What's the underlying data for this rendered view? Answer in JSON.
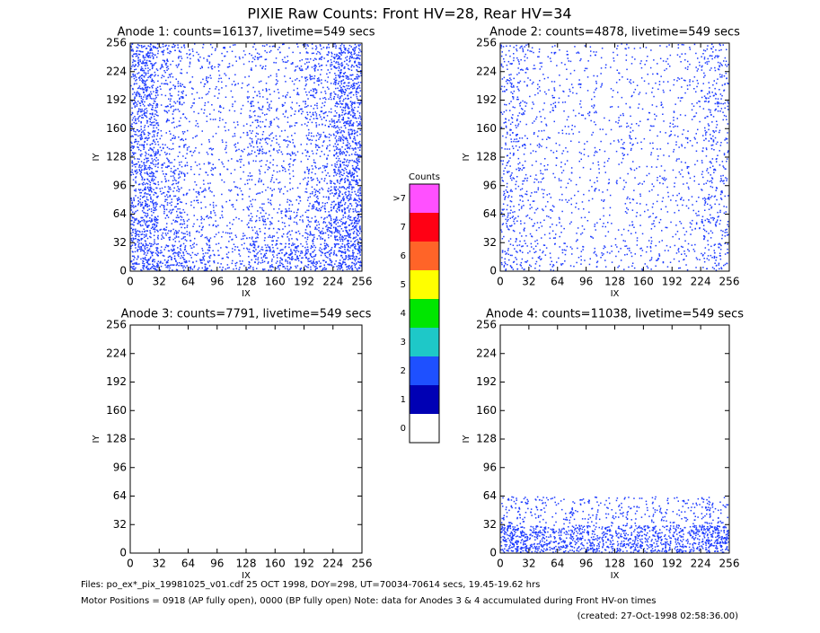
{
  "title": "PIXIE Raw Counts:  Front HV=28, Rear HV=34",
  "chart_data": [
    {
      "type": "heatmap",
      "title": "Anode 1: counts=16137, livetime=549 secs",
      "x_label": "IX",
      "y_label": "IY",
      "xlim": [
        0,
        256
      ],
      "ylim": [
        0,
        256
      ],
      "xticks": [
        0,
        32,
        64,
        96,
        128,
        160,
        192,
        224,
        256
      ],
      "yticks": [
        0,
        32,
        64,
        96,
        128,
        160,
        192,
        224,
        256
      ],
      "x_bins": [
        0,
        32,
        64,
        96,
        128,
        160,
        192,
        224,
        256
      ],
      "y_bins": [
        0,
        32,
        64,
        96,
        128,
        160,
        192,
        224,
        256
      ],
      "color": "#1e3cff",
      "values": [
        [
          170,
          120,
          80,
          50,
          100,
          120,
          130,
          180
        ],
        [
          150,
          80,
          50,
          30,
          70,
          50,
          100,
          170
        ],
        [
          130,
          80,
          40,
          25,
          40,
          40,
          80,
          160
        ],
        [
          130,
          70,
          30,
          25,
          40,
          30,
          60,
          150
        ],
        [
          130,
          50,
          25,
          25,
          70,
          40,
          60,
          150
        ],
        [
          130,
          50,
          25,
          25,
          60,
          40,
          70,
          150
        ],
        [
          140,
          60,
          30,
          25,
          30,
          30,
          70,
          150
        ],
        [
          150,
          70,
          40,
          30,
          40,
          40,
          80,
          150
        ]
      ]
    },
    {
      "type": "heatmap",
      "title": "Anode 2: counts=4878, livetime=549 secs",
      "x_label": "IX",
      "y_label": "IY",
      "xlim": [
        0,
        256
      ],
      "ylim": [
        0,
        256
      ],
      "xticks": [
        0,
        32,
        64,
        96,
        128,
        160,
        192,
        224,
        256
      ],
      "yticks": [
        0,
        32,
        64,
        96,
        128,
        160,
        192,
        224,
        256
      ],
      "x_bins": [
        0,
        32,
        64,
        96,
        128,
        160,
        192,
        224,
        256
      ],
      "y_bins": [
        0,
        32,
        64,
        96,
        128,
        160,
        192,
        224,
        256
      ],
      "color": "#1e3cff",
      "values": [
        [
          60,
          40,
          30,
          25,
          30,
          30,
          30,
          60
        ],
        [
          50,
          30,
          20,
          18,
          20,
          20,
          25,
          55
        ],
        [
          50,
          30,
          20,
          18,
          20,
          20,
          25,
          50
        ],
        [
          50,
          25,
          20,
          18,
          20,
          20,
          25,
          50
        ],
        [
          50,
          25,
          20,
          18,
          30,
          20,
          25,
          50
        ],
        [
          50,
          25,
          20,
          18,
          25,
          20,
          25,
          50
        ],
        [
          50,
          25,
          20,
          18,
          20,
          20,
          25,
          50
        ],
        [
          55,
          25,
          20,
          18,
          20,
          20,
          25,
          55
        ]
      ]
    },
    {
      "type": "heatmap",
      "title": "Anode 3: counts=7791, livetime=549 secs",
      "x_label": "IX",
      "y_label": "IY",
      "xlim": [
        0,
        256
      ],
      "ylim": [
        0,
        256
      ],
      "xticks": [
        0,
        32,
        64,
        96,
        128,
        160,
        192,
        224,
        256
      ],
      "yticks": [
        0,
        32,
        64,
        96,
        128,
        160,
        192,
        224,
        256
      ],
      "x_bins": [
        0,
        32,
        64,
        96,
        128,
        160,
        192,
        224,
        256
      ],
      "y_bins": [
        0,
        32,
        64,
        96,
        128,
        160,
        192,
        224,
        256
      ],
      "color": "#1e3cff",
      "values": [
        [
          0,
          0,
          0,
          0,
          0,
          0,
          0,
          0
        ],
        [
          0,
          0,
          0,
          0,
          0,
          0,
          0,
          0
        ],
        [
          0,
          0,
          0,
          0,
          0,
          0,
          0,
          0
        ],
        [
          0,
          0,
          0,
          0,
          0,
          0,
          0,
          0
        ],
        [
          0,
          0,
          0,
          0,
          0,
          0,
          0,
          0
        ],
        [
          0,
          0,
          0,
          0,
          0,
          0,
          0,
          0
        ],
        [
          0,
          0,
          0,
          0,
          0,
          0,
          0,
          0
        ],
        [
          0,
          0,
          0,
          0,
          0,
          0,
          0,
          0
        ]
      ]
    },
    {
      "type": "heatmap",
      "title": "Anode 4: counts=11038, livetime=549 secs",
      "x_label": "IX",
      "y_label": "IY",
      "xlim": [
        0,
        256
      ],
      "ylim": [
        0,
        256
      ],
      "xticks": [
        0,
        32,
        64,
        96,
        128,
        160,
        192,
        224,
        256
      ],
      "yticks": [
        0,
        32,
        64,
        96,
        128,
        160,
        192,
        224,
        256
      ],
      "x_bins": [
        0,
        32,
        64,
        96,
        128,
        160,
        192,
        224,
        256
      ],
      "y_bins": [
        0,
        32,
        64,
        96,
        128,
        160,
        192,
        224,
        256
      ],
      "color": "#1e3cff",
      "values": [
        [
          200,
          150,
          140,
          140,
          150,
          140,
          140,
          200
        ],
        [
          60,
          40,
          40,
          40,
          40,
          40,
          40,
          60
        ],
        [
          0,
          0,
          0,
          0,
          0,
          0,
          0,
          0
        ],
        [
          0,
          0,
          0,
          0,
          0,
          0,
          0,
          0
        ],
        [
          0,
          0,
          0,
          0,
          0,
          0,
          0,
          0
        ],
        [
          0,
          0,
          0,
          0,
          0,
          0,
          0,
          0
        ],
        [
          0,
          0,
          0,
          0,
          0,
          0,
          0,
          0
        ],
        [
          0,
          0,
          0,
          0,
          0,
          0,
          0,
          0
        ]
      ]
    }
  ],
  "colorbar": {
    "title": "Counts",
    "labels": [
      "0",
      "1",
      "2",
      "3",
      "4",
      "5",
      "6",
      "7",
      ">7"
    ],
    "colors": [
      "#ffffff",
      "#0000b4",
      "#1e50ff",
      "#1ec8c8",
      "#00e600",
      "#ffff00",
      "#ff6428",
      "#ff0014",
      "#ff50ff"
    ]
  },
  "footer": [
    "Files: po_ex*_pix_19981025_v01.cdf    25 OCT 1998, DOY=298, UT=70034-70614 secs, 19.45-19.62 hrs",
    "Motor Positions = 0918 (AP fully open), 0000 (BP fully open)    Note: data for Anodes 3 & 4 accumulated during Front HV-on times",
    "(created: 27-Oct-1998 02:58:36.00)"
  ]
}
